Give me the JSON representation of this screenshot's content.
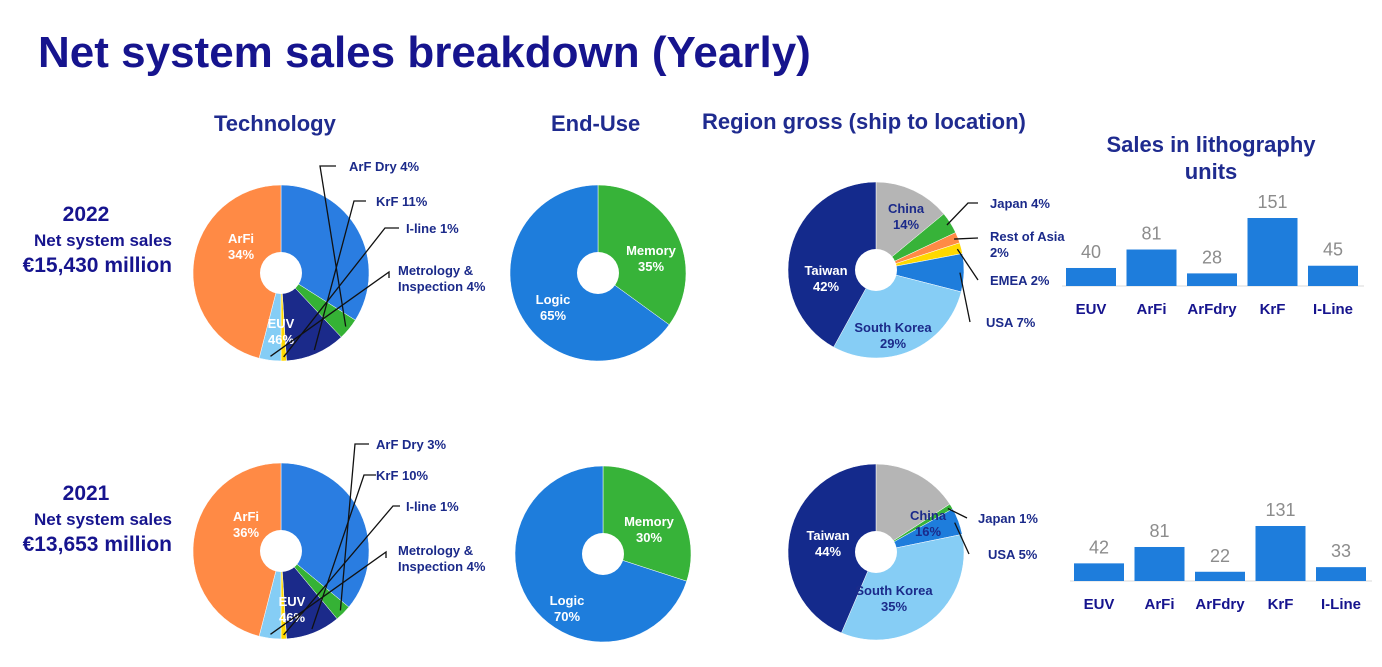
{
  "title": "Net system sales breakdown (Yearly)",
  "column_headers": {
    "technology": "Technology",
    "end_use": "End-Use",
    "region": "Region gross (ship to location)",
    "units_line1": "Sales in lithography",
    "units_line2": "units"
  },
  "years": [
    {
      "year": "2022",
      "label": "Net system sales",
      "value": "€15,430 million"
    },
    {
      "year": "2021",
      "label": "Net system sales",
      "value": "€13,653 million"
    }
  ],
  "colors": {
    "arfi": "#2a7de1",
    "arfdry": "#35b235",
    "krf": "#1b2a8a",
    "iline": "#ffd800",
    "metrology": "#85cdf5",
    "euv": "#ff8a45",
    "logic": "#1e7ddc",
    "memory": "#37b339",
    "taiwan": "#142a8c",
    "china": "#b5b5b5",
    "japan": "#37b339",
    "rest_asia": "#ff8a45",
    "emea": "#ffd800",
    "usa": "#1e7ddc",
    "south_korea": "#86cdf5",
    "bar": "#1e7ddc",
    "title": "#16148e"
  },
  "chart_data": [
    {
      "type": "pie",
      "title": "Technology",
      "year": "2022",
      "labels": [
        "ArFi",
        "ArF Dry",
        "KrF",
        "I-line",
        "Metrology & Inspection",
        "EUV"
      ],
      "values": [
        34,
        4,
        11,
        1,
        4,
        46
      ],
      "colors": [
        "#2a7de1",
        "#35b235",
        "#1b2a8a",
        "#ffd800",
        "#85cdf5",
        "#ff8a45"
      ],
      "inside": [
        {
          "slice": 0,
          "l1": "ArFi",
          "l2": "34%",
          "color": "#ffffff"
        },
        {
          "slice": 5,
          "l1": "EUV",
          "l2": "46%",
          "color": "#ffffff"
        }
      ],
      "callouts": [
        {
          "slice": 1,
          "l1": "ArF Dry 4%"
        },
        {
          "slice": 2,
          "l1": "KrF 11%"
        },
        {
          "slice": 3,
          "l1": "I-line 1%"
        },
        {
          "slice": 4,
          "l1": "Metrology &",
          "l2": "Inspection 4%"
        }
      ]
    },
    {
      "type": "pie",
      "title": "End-Use",
      "year": "2022",
      "labels": [
        "Memory",
        "Logic"
      ],
      "values": [
        35,
        65
      ],
      "colors": [
        "#37b339",
        "#1e7ddc"
      ],
      "inside": [
        {
          "slice": 0,
          "l1": "Memory",
          "l2": "35%",
          "color": "#ffffff"
        },
        {
          "slice": 1,
          "l1": "Logic",
          "l2": "65%",
          "color": "#ffffff"
        }
      ],
      "callouts": []
    },
    {
      "type": "pie",
      "title": "Region gross (ship to location)",
      "year": "2022",
      "labels": [
        "China",
        "Japan",
        "Rest of Asia",
        "EMEA",
        "USA",
        "South Korea",
        "Taiwan"
      ],
      "values": [
        14,
        4,
        2,
        2,
        7,
        29,
        42
      ],
      "colors": [
        "#b5b5b5",
        "#37b339",
        "#ff8a45",
        "#ffd800",
        "#1e7ddc",
        "#86cdf5",
        "#142a8c"
      ],
      "inside": [
        {
          "slice": 0,
          "l1": "China",
          "l2": "14%",
          "color": "#1b2a8a"
        },
        {
          "slice": 5,
          "l1": "South Korea",
          "l2": "29%",
          "color": "#1b2a8a"
        },
        {
          "slice": 6,
          "l1": "Taiwan",
          "l2": "42%",
          "color": "#ffffff"
        }
      ],
      "callouts": [
        {
          "slice": 1,
          "l1": "Japan 4%"
        },
        {
          "slice": 2,
          "l1": "Rest of Asia",
          "l2": "2%"
        },
        {
          "slice": 3,
          "l1": "EMEA 2%"
        },
        {
          "slice": 4,
          "l1": "USA 7%"
        }
      ]
    },
    {
      "type": "bar",
      "title": "Sales in lithography units",
      "year": "2022",
      "categories": [
        "EUV",
        "ArFi",
        "ArFdry",
        "KrF",
        "I-Line"
      ],
      "values": [
        40,
        81,
        28,
        151,
        45
      ]
    },
    {
      "type": "pie",
      "title": "Technology",
      "year": "2021",
      "labels": [
        "ArFi",
        "ArF Dry",
        "KrF",
        "I-line",
        "Metrology & Inspection",
        "EUV"
      ],
      "values": [
        36,
        3,
        10,
        1,
        4,
        46
      ],
      "colors": [
        "#2a7de1",
        "#35b235",
        "#1b2a8a",
        "#ffd800",
        "#85cdf5",
        "#ff8a45"
      ],
      "inside": [
        {
          "slice": 0,
          "l1": "ArFi",
          "l2": "36%",
          "color": "#ffffff"
        },
        {
          "slice": 5,
          "l1": "EUV",
          "l2": "46%",
          "color": "#ffffff"
        }
      ],
      "callouts": [
        {
          "slice": 1,
          "l1": "ArF Dry 3%"
        },
        {
          "slice": 2,
          "l1": "KrF 10%"
        },
        {
          "slice": 3,
          "l1": "I-line 1%"
        },
        {
          "slice": 4,
          "l1": "Metrology &",
          "l2": "Inspection 4%"
        }
      ]
    },
    {
      "type": "pie",
      "title": "End-Use",
      "year": "2021",
      "labels": [
        "Memory",
        "Logic"
      ],
      "values": [
        30,
        70
      ],
      "colors": [
        "#37b339",
        "#1e7ddc"
      ],
      "inside": [
        {
          "slice": 0,
          "l1": "Memory",
          "l2": "30%",
          "color": "#ffffff"
        },
        {
          "slice": 1,
          "l1": "Logic",
          "l2": "70%",
          "color": "#ffffff"
        }
      ],
      "callouts": []
    },
    {
      "type": "pie",
      "title": "Region gross (ship to location)",
      "year": "2021",
      "labels": [
        "China",
        "Japan",
        "USA",
        "South Korea",
        "Taiwan"
      ],
      "values": [
        16,
        1,
        5,
        35,
        44
      ],
      "colors": [
        "#b5b5b5",
        "#37b339",
        "#1e7ddc",
        "#86cdf5",
        "#142a8c"
      ],
      "inside": [
        {
          "slice": 0,
          "l1": "China",
          "l2": "16%",
          "color": "#1b2a8a"
        },
        {
          "slice": 3,
          "l1": "South Korea",
          "l2": "35%",
          "color": "#1b2a8a"
        },
        {
          "slice": 4,
          "l1": "Taiwan",
          "l2": "44%",
          "color": "#ffffff"
        }
      ],
      "callouts": [
        {
          "slice": 1,
          "l1": "Japan 1%"
        },
        {
          "slice": 2,
          "l1": "USA 5%"
        }
      ]
    },
    {
      "type": "bar",
      "title": "Sales in lithography units",
      "year": "2021",
      "categories": [
        "EUV",
        "ArFi",
        "ArFdry",
        "KrF",
        "I-Line"
      ],
      "values": [
        42,
        81,
        22,
        131,
        33
      ]
    }
  ]
}
